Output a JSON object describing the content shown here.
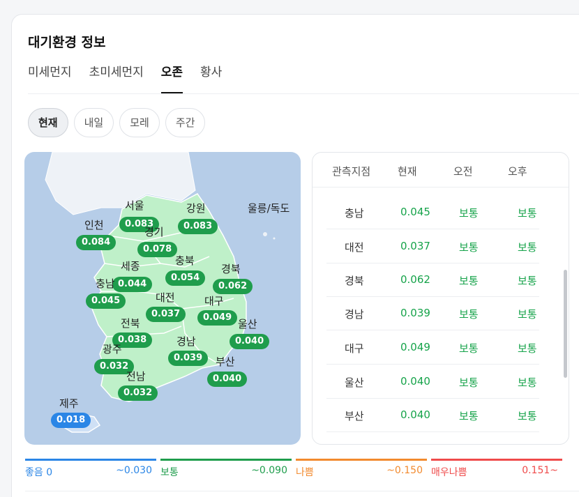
{
  "title": "대기환경 정보",
  "tabs": [
    {
      "label": "미세먼지",
      "active": false
    },
    {
      "label": "초미세먼지",
      "active": false
    },
    {
      "label": "오존",
      "active": true
    },
    {
      "label": "황사",
      "active": false
    }
  ],
  "chips": [
    {
      "label": "현재",
      "active": true
    },
    {
      "label": "내일",
      "active": false
    },
    {
      "label": "모레",
      "active": false
    },
    {
      "label": "주간",
      "active": false
    }
  ],
  "map": {
    "regions": [
      {
        "name": "서울",
        "value": "0.083"
      },
      {
        "name": "강원",
        "value": "0.083"
      },
      {
        "name": "인천",
        "value": "0.084"
      },
      {
        "name": "경기",
        "value": "0.078"
      },
      {
        "name": "세종",
        "value": "0.044"
      },
      {
        "name": "충북",
        "value": "0.054"
      },
      {
        "name": "경북",
        "value": "0.062"
      },
      {
        "name": "충남",
        "value": "0.045"
      },
      {
        "name": "대전",
        "value": "0.037"
      },
      {
        "name": "대구",
        "value": "0.049"
      },
      {
        "name": "울산",
        "value": "0.040"
      },
      {
        "name": "전북",
        "value": "0.038"
      },
      {
        "name": "경남",
        "value": "0.039"
      },
      {
        "name": "광주",
        "value": "0.032"
      },
      {
        "name": "부산",
        "value": "0.040"
      },
      {
        "name": "전남",
        "value": "0.032"
      },
      {
        "name": "제주",
        "value": "0.018"
      }
    ],
    "extra_label": "울릉/독도"
  },
  "table": {
    "headers": [
      "관측지점",
      "현재",
      "오전",
      "오후"
    ],
    "rows": [
      {
        "name": "충남",
        "now": "0.045",
        "am": "보통",
        "pm": "보통"
      },
      {
        "name": "대전",
        "now": "0.037",
        "am": "보통",
        "pm": "보통"
      },
      {
        "name": "경북",
        "now": "0.062",
        "am": "보통",
        "pm": "보통"
      },
      {
        "name": "경남",
        "now": "0.039",
        "am": "보통",
        "pm": "보통"
      },
      {
        "name": "대구",
        "now": "0.049",
        "am": "보통",
        "pm": "보통"
      },
      {
        "name": "울산",
        "now": "0.040",
        "am": "보통",
        "pm": "보통"
      },
      {
        "name": "부산",
        "now": "0.040",
        "am": "보통",
        "pm": "보통"
      }
    ]
  },
  "legend": [
    {
      "label": "좋음 0",
      "range": "~0.030",
      "color": "#2b86e6"
    },
    {
      "label": "보통",
      "range": "~0.090",
      "color": "#1f9d4c"
    },
    {
      "label": "나쁨",
      "range": "~0.150",
      "color": "#f28a2e"
    },
    {
      "label": "매우나쁨",
      "range": "0.151~",
      "color": "#ef4b4b"
    }
  ],
  "colors": {
    "good": "#2b86e6",
    "normal": "#1f9d4c",
    "bad": "#f28a2e",
    "very_bad": "#ef4b4b",
    "land": "#bff0c9",
    "sea": "#b6cde8"
  }
}
